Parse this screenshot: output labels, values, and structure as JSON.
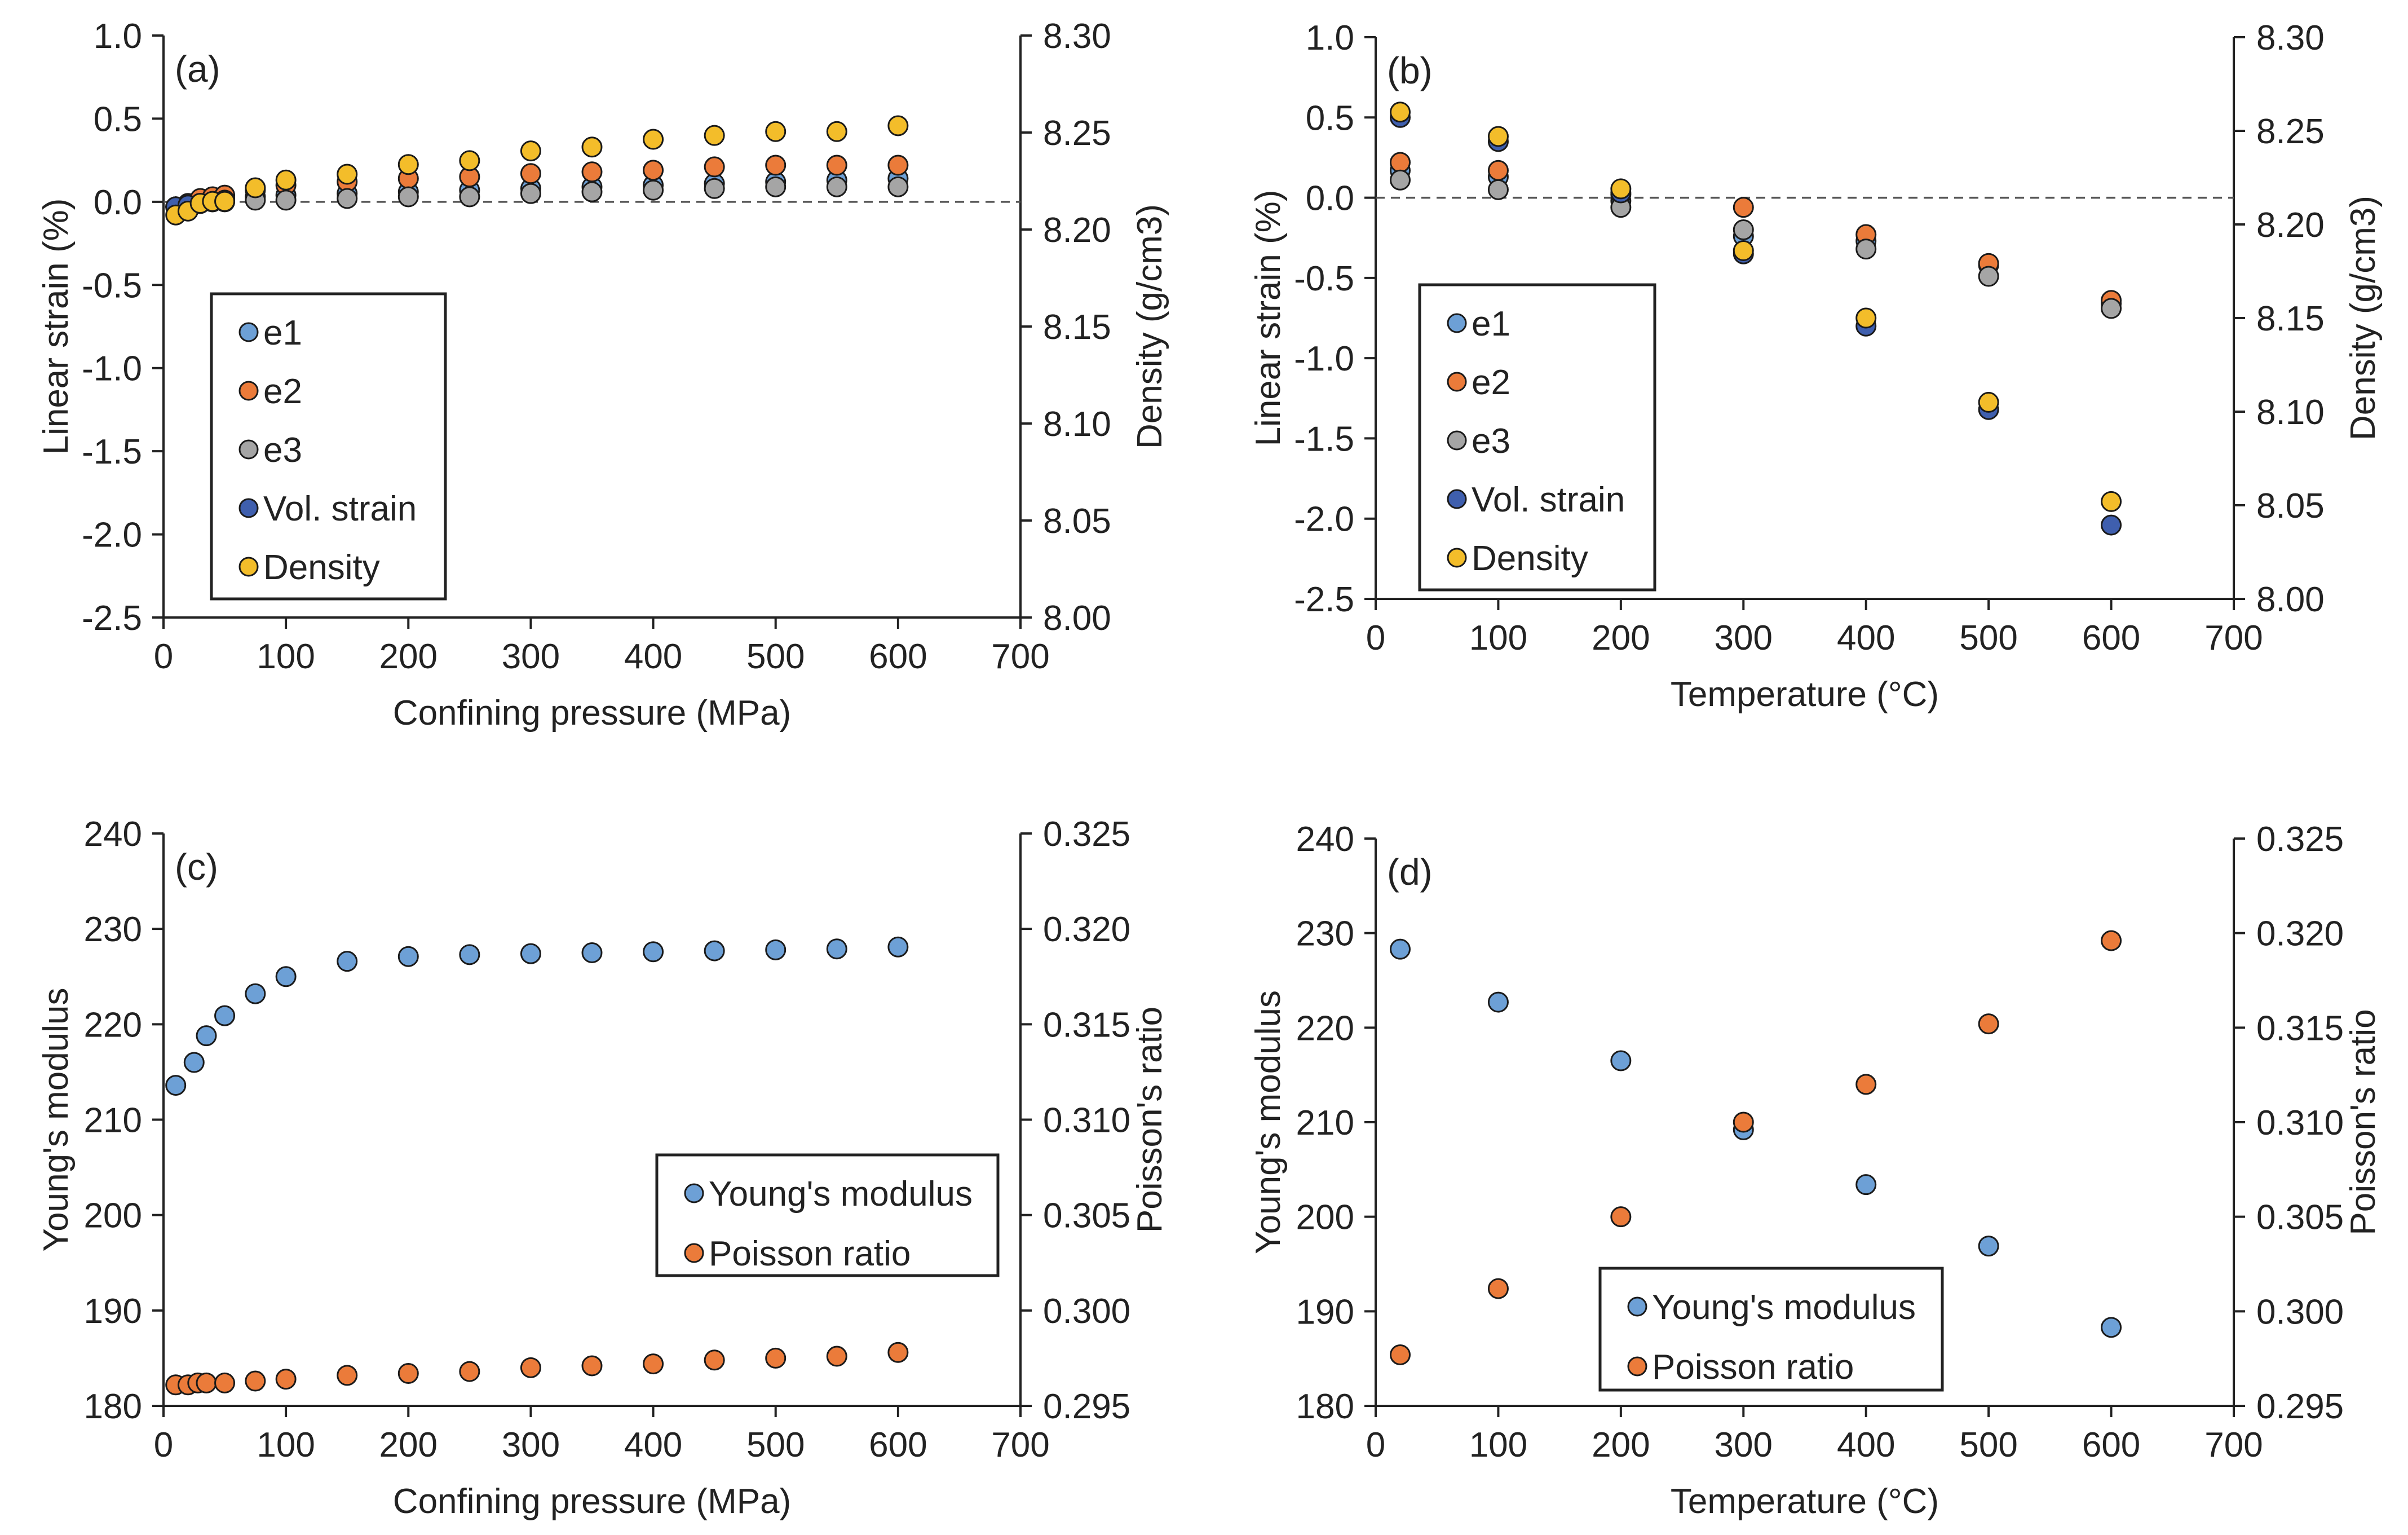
{
  "colors": {
    "e1": "#6da0d6",
    "e2": "#eb7b3a",
    "e3": "#a5a5a5",
    "vol": "#3f5fae",
    "density": "#f3bd2a",
    "young": "#6da0d6",
    "poisson": "#eb7b3a",
    "marker_edge": "#1a1a1a",
    "axis": "#222222"
  },
  "chart_data": [
    {
      "id": "a",
      "type": "scatter",
      "panel_label": "(a)",
      "xlabel": "Confining pressure (MPa)",
      "ylabel": "Linear strain (%)",
      "y2label": "Density (g/cm3)",
      "xlim": [
        0,
        700
      ],
      "ylim": [
        -2.5,
        1.0
      ],
      "y2lim": [
        8.0,
        8.3
      ],
      "x_ticks": [
        "0",
        "100",
        "200",
        "300",
        "400",
        "500",
        "600",
        "700"
      ],
      "y_ticks": [
        "1.0",
        "0.5",
        "0.0",
        "-0.5",
        "-1.0",
        "-1.5",
        "-2.0",
        "-2.5"
      ],
      "y2_ticks": [
        "8.30",
        "8.25",
        "8.20",
        "8.15",
        "8.10",
        "8.05",
        "8.00"
      ],
      "zero_line": true,
      "legend_position": "lower-left",
      "series": [
        {
          "name": "e1",
          "axis": "left",
          "color_key": "e1",
          "x": [
            10,
            20,
            30,
            40,
            50,
            75,
            100,
            150,
            200,
            250,
            300,
            350,
            400,
            450,
            500,
            550,
            600
          ],
          "y": [
            -0.03,
            -0.02,
            0.0,
            0.01,
            0.02,
            0.03,
            0.04,
            0.05,
            0.06,
            0.07,
            0.08,
            0.09,
            0.1,
            0.11,
            0.12,
            0.13,
            0.14
          ]
        },
        {
          "name": "e2",
          "axis": "left",
          "color_key": "e2",
          "x": [
            10,
            20,
            30,
            40,
            50,
            75,
            100,
            150,
            200,
            250,
            300,
            350,
            400,
            450,
            500,
            550,
            600
          ],
          "y": [
            -0.03,
            -0.01,
            0.02,
            0.03,
            0.04,
            0.07,
            0.1,
            0.12,
            0.14,
            0.15,
            0.17,
            0.18,
            0.19,
            0.21,
            0.22,
            0.22,
            0.22
          ]
        },
        {
          "name": "e3",
          "axis": "left",
          "color_key": "e3",
          "x": [
            10,
            20,
            30,
            40,
            50,
            75,
            100,
            150,
            200,
            250,
            300,
            350,
            400,
            450,
            500,
            550,
            600
          ],
          "y": [
            -0.03,
            -0.02,
            -0.01,
            0.0,
            0.0,
            0.01,
            0.01,
            0.02,
            0.03,
            0.03,
            0.05,
            0.06,
            0.07,
            0.08,
            0.09,
            0.09,
            0.09
          ]
        },
        {
          "name": "Vol. strain",
          "axis": "left",
          "color_key": "vol",
          "x": [
            10,
            20,
            30,
            40,
            50
          ],
          "y": [
            -0.03,
            -0.02,
            -0.01,
            0.0,
            0.01
          ]
        },
        {
          "name": "Density",
          "axis": "right",
          "color_key": "density",
          "x": [
            10,
            20,
            30,
            40,
            50,
            75,
            100,
            150,
            200,
            250,
            300,
            350,
            400,
            450,
            500,
            550,
            600
          ],
          "y": [
            8.2075,
            8.2095,
            8.2135,
            8.2145,
            8.2145,
            8.2215,
            8.2255,
            8.2285,
            8.2335,
            8.2355,
            8.2405,
            8.2425,
            8.2465,
            8.2485,
            8.2505,
            8.2505,
            8.2535
          ]
        }
      ]
    },
    {
      "id": "b",
      "type": "scatter",
      "panel_label": "(b)",
      "xlabel": "Temperature (°C)",
      "ylabel": "Linear strain (%)",
      "y2label": "Density (g/cm3)",
      "xlim": [
        0,
        700
      ],
      "ylim": [
        -2.5,
        1.0
      ],
      "y2lim": [
        8.0,
        8.3
      ],
      "x_ticks": [
        "0",
        "100",
        "200",
        "300",
        "400",
        "500",
        "600",
        "700"
      ],
      "y_ticks": [
        "1.0",
        "0.5",
        "0.0",
        "-0.5",
        "-1.0",
        "-1.5",
        "-2.0",
        "-2.5"
      ],
      "y2_ticks": [
        "8.30",
        "8.25",
        "8.20",
        "8.15",
        "8.10",
        "8.05",
        "8.00"
      ],
      "zero_line": true,
      "legend_position": "lower-left",
      "series": [
        {
          "name": "e1",
          "axis": "left",
          "color_key": "e1",
          "x": [
            20,
            100,
            200,
            300,
            400,
            500,
            600
          ],
          "y": [
            0.17,
            0.13,
            -0.02,
            -0.24,
            -0.27,
            -0.42,
            -0.66
          ]
        },
        {
          "name": "e2",
          "axis": "left",
          "color_key": "e2",
          "x": [
            20,
            100,
            200,
            300,
            400,
            500,
            600
          ],
          "y": [
            0.22,
            0.17,
            0.02,
            -0.06,
            -0.23,
            -0.41,
            -0.64
          ]
        },
        {
          "name": "e3",
          "axis": "left",
          "color_key": "e3",
          "x": [
            20,
            100,
            200,
            300,
            400,
            500,
            600
          ],
          "y": [
            0.11,
            0.05,
            -0.06,
            -0.2,
            -0.32,
            -0.49,
            -0.69
          ]
        },
        {
          "name": "Vol. strain",
          "axis": "left",
          "color_key": "vol",
          "x": [
            20,
            100,
            200,
            300,
            400,
            500,
            600
          ],
          "y": [
            0.5,
            0.35,
            0.03,
            -0.35,
            -0.8,
            -1.32,
            -2.04
          ]
        },
        {
          "name": "Density",
          "axis": "right",
          "color_key": "density",
          "x": [
            20,
            100,
            200,
            300,
            400,
            500,
            600
          ],
          "y": [
            8.26,
            8.247,
            8.219,
            8.186,
            8.15,
            8.105,
            8.052
          ]
        }
      ]
    },
    {
      "id": "c",
      "type": "scatter",
      "panel_label": "(c)",
      "xlabel": "Confining pressure (MPa)",
      "ylabel": "Young's modulus",
      "y2label": "Poisson's ratio",
      "xlim": [
        0,
        700
      ],
      "ylim": [
        180,
        240
      ],
      "y2lim": [
        0.295,
        0.325
      ],
      "x_ticks": [
        "0",
        "100",
        "200",
        "300",
        "400",
        "500",
        "600",
        "700"
      ],
      "y_ticks": [
        "240",
        "230",
        "220",
        "210",
        "200",
        "190",
        "180"
      ],
      "y2_ticks": [
        "0.325",
        "0.320",
        "0.315",
        "0.310",
        "0.305",
        "0.300",
        "0.295"
      ],
      "zero_line": false,
      "legend_position": "middle-right",
      "series": [
        {
          "name": "Young's modulus",
          "axis": "left",
          "color_key": "young",
          "x": [
            10,
            25,
            35,
            50,
            75,
            100,
            150,
            200,
            250,
            300,
            350,
            400,
            450,
            500,
            550,
            600
          ],
          "y": [
            213.6,
            216.0,
            218.8,
            220.9,
            223.2,
            225.0,
            226.6,
            227.1,
            227.3,
            227.4,
            227.5,
            227.6,
            227.7,
            227.8,
            227.9,
            228.1
          ]
        },
        {
          "name": "Poisson ratio",
          "axis": "right",
          "color_key": "poisson",
          "x": [
            10,
            20,
            28,
            35,
            50,
            75,
            100,
            150,
            200,
            250,
            300,
            350,
            400,
            450,
            500,
            550,
            600
          ],
          "y": [
            0.2961,
            0.2961,
            0.2962,
            0.2962,
            0.2962,
            0.2963,
            0.2964,
            0.2966,
            0.2967,
            0.2968,
            0.297,
            0.2971,
            0.2972,
            0.2974,
            0.2975,
            0.2976,
            0.2978
          ]
        }
      ]
    },
    {
      "id": "d",
      "type": "scatter",
      "panel_label": "(d)",
      "xlabel": "Temperature (°C)",
      "ylabel": "Young's modulus",
      "y2label": "Poisson's ratio",
      "xlim": [
        0,
        700
      ],
      "ylim": [
        180,
        240
      ],
      "y2lim": [
        0.295,
        0.325
      ],
      "x_ticks": [
        "0",
        "100",
        "200",
        "300",
        "400",
        "500",
        "600",
        "700"
      ],
      "y_ticks": [
        "240",
        "230",
        "220",
        "210",
        "200",
        "190",
        "180"
      ],
      "y2_ticks": [
        "0.325",
        "0.320",
        "0.315",
        "0.310",
        "0.305",
        "0.300",
        "0.295"
      ],
      "zero_line": false,
      "legend_position": "lower-center",
      "series": [
        {
          "name": "Young's modulus",
          "axis": "left",
          "color_key": "young",
          "x": [
            20,
            100,
            200,
            300,
            400,
            500,
            600
          ],
          "y": [
            228.3,
            222.7,
            216.5,
            209.2,
            203.4,
            196.9,
            188.3
          ]
        },
        {
          "name": "Poisson ratio",
          "axis": "right",
          "color_key": "poisson",
          "x": [
            20,
            100,
            200,
            300,
            400,
            500,
            600
          ],
          "y": [
            0.2977,
            0.3012,
            0.305,
            0.31,
            0.312,
            0.3152,
            0.3196
          ]
        }
      ]
    }
  ]
}
